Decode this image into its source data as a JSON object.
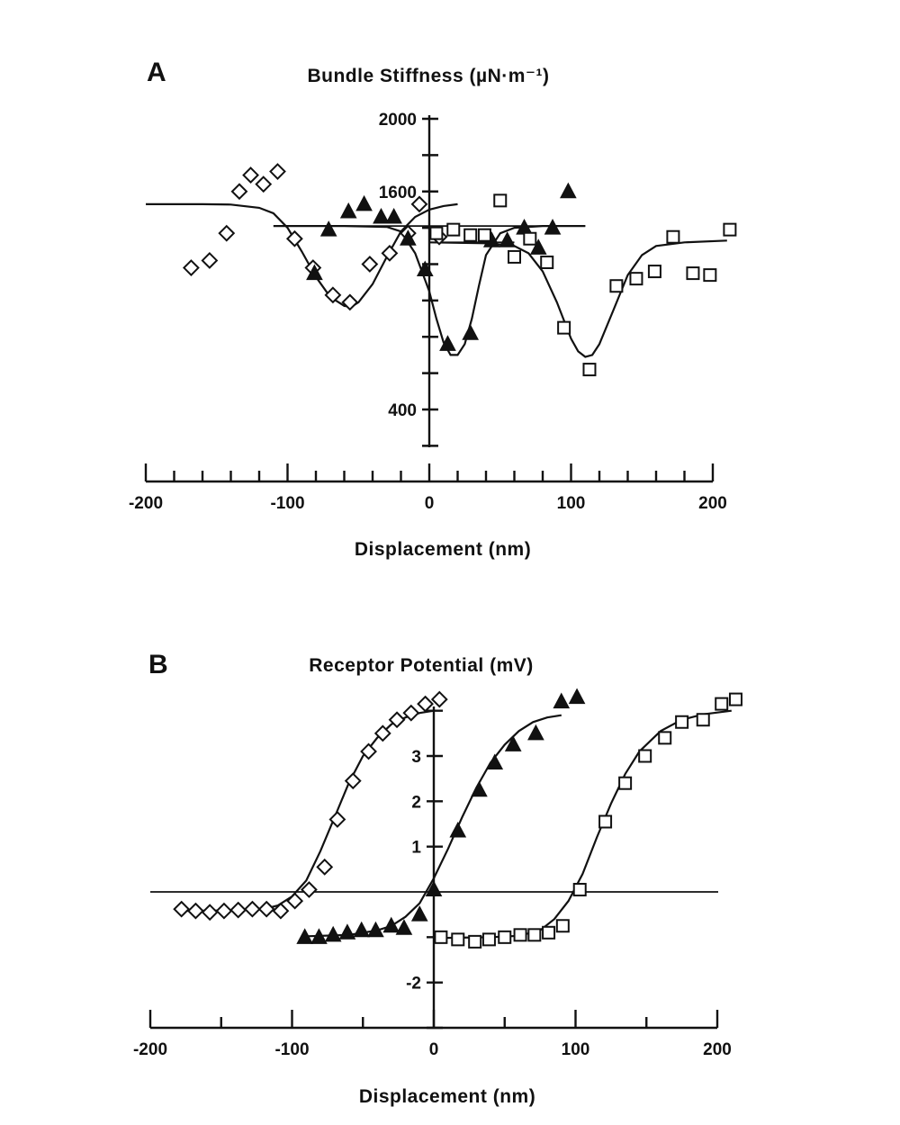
{
  "chart_data": [
    {
      "panel": "A",
      "type": "scatter",
      "title": "Bundle Stiffness (µN·m⁻¹)",
      "xlabel": "Displacement (nm)",
      "ylabel": "",
      "xlim": [
        -200,
        200
      ],
      "ylim": [
        0,
        2000
      ],
      "xticks": [
        -200,
        -100,
        0,
        100,
        200
      ],
      "xticks_minor": [
        -200,
        -180,
        -160,
        -140,
        -120,
        -100,
        -80,
        -60,
        -40,
        -20,
        0,
        20,
        40,
        60,
        80,
        100,
        120,
        140,
        160,
        180,
        200
      ],
      "yticks_labeled": [
        400,
        1600,
        2000
      ],
      "yticks": [
        200,
        400,
        600,
        800,
        1000,
        1200,
        1400,
        1600,
        1800,
        2000
      ],
      "grid": false,
      "series": [
        {
          "marker": "diamond-open",
          "x": [
            -168,
            -155,
            -143,
            -134,
            -126,
            -117,
            -107,
            -95,
            -82,
            -68,
            -56,
            -42,
            -28,
            -15,
            -7,
            7
          ],
          "y": [
            1180,
            1220,
            1370,
            1600,
            1690,
            1640,
            1710,
            1340,
            1180,
            1030,
            990,
            1200,
            1260,
            1370,
            1530,
            1350
          ],
          "fit": {
            "x": [
              -200,
              -160,
              -140,
              -120,
              -110,
              -100,
              -90,
              -80,
              -70,
              -60,
              -55,
              -50,
              -40,
              -30,
              -20,
              -10,
              0,
              10,
              20
            ],
            "y": [
              1530,
              1530,
              1528,
              1510,
              1480,
              1400,
              1270,
              1130,
              1020,
              970,
              965,
              990,
              1090,
              1240,
              1380,
              1460,
              1500,
              1520,
              1530
            ]
          }
        },
        {
          "marker": "triangle-filled",
          "x": [
            -81,
            -71,
            -57,
            -46,
            -34,
            -25,
            -15,
            -3,
            13,
            29,
            44,
            55,
            67,
            77,
            87,
            98
          ],
          "y": [
            1150,
            1390,
            1490,
            1530,
            1460,
            1460,
            1340,
            1170,
            760,
            820,
            1330,
            1330,
            1400,
            1290,
            1400,
            1600
          ],
          "fit": {
            "x": [
              -110,
              -60,
              -30,
              -20,
              -10,
              0,
              5,
              10,
              15,
              20,
              25,
              30,
              35,
              40,
              50,
              60,
              80,
              110
            ],
            "y": [
              1410,
              1410,
              1405,
              1380,
              1260,
              1050,
              900,
              770,
              700,
              700,
              760,
              900,
              1080,
              1250,
              1370,
              1400,
              1410,
              1410
            ]
          }
        },
        {
          "marker": "square-open",
          "x": [
            5,
            17,
            29,
            39,
            50,
            60,
            71,
            83,
            95,
            113,
            132,
            146,
            159,
            172,
            186,
            198,
            212
          ],
          "y": [
            1370,
            1390,
            1360,
            1360,
            1550,
            1240,
            1340,
            1210,
            850,
            620,
            1080,
            1120,
            1160,
            1350,
            1150,
            1140,
            1390
          ],
          "fit": {
            "x": [
              0,
              40,
              60,
              70,
              80,
              90,
              100,
              105,
              110,
              115,
              120,
              130,
              140,
              150,
              160,
              180,
              210
            ],
            "y": [
              1320,
              1315,
              1300,
              1260,
              1160,
              990,
              790,
              720,
              690,
              700,
              760,
              950,
              1140,
              1250,
              1300,
              1320,
              1330
            ]
          }
        }
      ],
      "reference_lines": [
        {
          "x": [
            -105,
            110
          ],
          "y": [
            1410,
            1410
          ]
        },
        {
          "x": [
            5,
            60
          ],
          "y": [
            1320,
            1320
          ]
        }
      ]
    },
    {
      "panel": "B",
      "type": "scatter",
      "title": "Receptor Potential (mV)",
      "xlabel": "Displacement (nm)",
      "ylabel": "",
      "xlim": [
        -200,
        200
      ],
      "ylim": [
        -3,
        4
      ],
      "xticks": [
        -200,
        -100,
        0,
        100,
        200
      ],
      "xticks_minor": [
        -200,
        -150,
        -100,
        -50,
        0,
        50,
        100,
        150,
        200
      ],
      "yticks_labeled": [
        -2,
        1,
        2,
        3
      ],
      "yticks": [
        -3,
        -2,
        -1,
        1,
        2,
        3,
        4
      ],
      "grid": false,
      "baseline": 0,
      "series": [
        {
          "marker": "diamond-open",
          "x": [
            -178,
            -168,
            -158,
            -148,
            -138,
            -128,
            -118,
            -108,
            -98,
            -88,
            -77,
            -68,
            -57,
            -46,
            -36,
            -26,
            -16,
            -6,
            4
          ],
          "y": [
            -0.38,
            -0.42,
            -0.45,
            -0.42,
            -0.4,
            -0.38,
            -0.38,
            -0.42,
            -0.2,
            0.05,
            0.55,
            1.6,
            2.45,
            3.1,
            3.5,
            3.8,
            3.95,
            4.15,
            4.25
          ],
          "fit": {
            "x": [
              -180,
              -140,
              -120,
              -110,
              -100,
              -90,
              -80,
              -70,
              -60,
              -50,
              -40,
              -30,
              -20,
              -10,
              0
            ],
            "y": [
              -0.42,
              -0.41,
              -0.38,
              -0.3,
              -0.1,
              0.25,
              0.9,
              1.65,
              2.4,
              3.0,
              3.4,
              3.7,
              3.85,
              3.95,
              4.0
            ]
          }
        },
        {
          "marker": "triangle-filled",
          "x": [
            -91,
            -81,
            -71,
            -61,
            -51,
            -41,
            -30,
            -21,
            -10,
            0,
            17,
            32,
            43,
            56,
            72,
            90,
            101
          ],
          "y": [
            -1.0,
            -1.0,
            -0.95,
            -0.9,
            -0.85,
            -0.85,
            -0.75,
            -0.8,
            -0.5,
            0.05,
            1.35,
            2.25,
            2.85,
            3.25,
            3.5,
            4.2,
            4.3
          ],
          "fit": {
            "x": [
              -90,
              -60,
              -40,
              -30,
              -20,
              -10,
              0,
              10,
              20,
              30,
              40,
              50,
              60,
              70,
              80,
              90
            ],
            "y": [
              -0.98,
              -0.95,
              -0.85,
              -0.75,
              -0.55,
              -0.25,
              0.3,
              0.95,
              1.65,
              2.3,
              2.85,
              3.25,
              3.55,
              3.75,
              3.85,
              3.9
            ]
          }
        },
        {
          "marker": "square-open",
          "x": [
            5,
            17,
            29,
            39,
            50,
            61,
            71,
            81,
            91,
            103,
            121,
            135,
            149,
            163,
            175,
            190,
            203,
            213
          ],
          "y": [
            -1.0,
            -1.05,
            -1.1,
            -1.05,
            -1.0,
            -0.95,
            -0.95,
            -0.9,
            -0.75,
            0.05,
            1.55,
            2.4,
            3.0,
            3.4,
            3.75,
            3.8,
            4.15,
            4.25
          ],
          "fit": {
            "x": [
              0,
              40,
              60,
              75,
              85,
              95,
              105,
              115,
              125,
              135,
              145,
              160,
              175,
              190,
              210
            ],
            "y": [
              -1.02,
              -1.0,
              -0.97,
              -0.85,
              -0.6,
              -0.2,
              0.4,
              1.2,
              1.95,
              2.6,
              3.1,
              3.55,
              3.8,
              3.92,
              4.0
            ]
          }
        }
      ]
    }
  ],
  "panels": {
    "a": {
      "label": "A",
      "title": "Bundle Stiffness (µN·m⁻¹)",
      "xlabel": "Displacement (nm)"
    },
    "b": {
      "label": "B",
      "title": "Receptor Potential (mV)",
      "xlabel": "Displacement (nm)"
    }
  }
}
